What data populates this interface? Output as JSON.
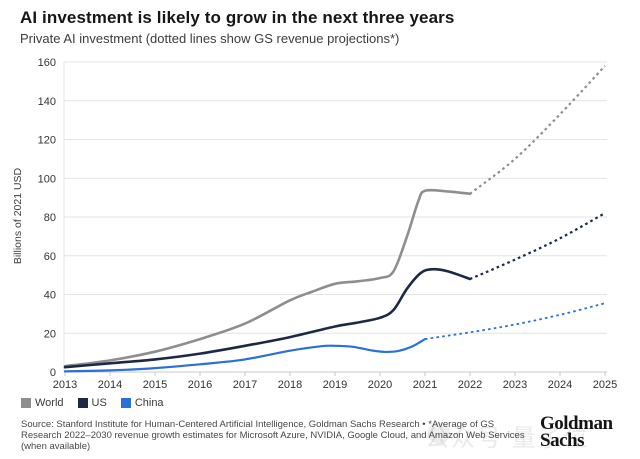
{
  "header": {
    "title": "AI investment is likely to grow in the next three years",
    "subtitle": "Private AI investment (dotted lines show GS revenue projections*)"
  },
  "chart_data": {
    "type": "line",
    "title": "AI investment is likely to grow in the next three years",
    "subtitle": "Private AI investment (dotted lines show GS revenue projections*)",
    "ylabel": "Billions of 2021 USD",
    "ylim": [
      0,
      160
    ],
    "ytick_step": 20,
    "yticks": [
      0,
      20,
      40,
      60,
      80,
      100,
      120,
      140,
      160
    ],
    "xticks": [
      2013,
      2014,
      2015,
      2016,
      2017,
      2018,
      2019,
      2020,
      2021,
      2022,
      2023,
      2024,
      2025
    ],
    "grid": "horizontal",
    "legend_position": "bottom-left",
    "note": "dotted segments are GS revenue projections",
    "series": [
      {
        "name": "World",
        "color": "#8e8e8e",
        "solid_width": 2.6,
        "solid": {
          "x": [
            2013,
            2014,
            2015,
            2016,
            2017,
            2018,
            2018.5,
            2019,
            2019.5,
            2020,
            2020.3,
            2020.6,
            2020.85,
            2021,
            2021.5,
            2022
          ],
          "y": [
            3,
            6,
            10.5,
            17,
            25,
            37,
            41.5,
            45.5,
            46.8,
            48.5,
            52,
            70,
            88,
            93.5,
            93.2,
            92
          ]
        },
        "dotted": {
          "x": [
            2022,
            2023,
            2024,
            2025
          ],
          "y": [
            92,
            110,
            133,
            158
          ]
        }
      },
      {
        "name": "US",
        "color": "#1b2946",
        "solid_width": 2.6,
        "solid": {
          "x": [
            2013,
            2014,
            2015,
            2016,
            2017,
            2018,
            2019,
            2019.5,
            2020,
            2020.3,
            2020.6,
            2020.9,
            2021.15,
            2021.5,
            2022
          ],
          "y": [
            2.5,
            4.5,
            6.5,
            9.5,
            13.5,
            18,
            23.5,
            25.5,
            28,
            32,
            43,
            51,
            53,
            52,
            48
          ]
        },
        "dotted": {
          "x": [
            2022,
            2023,
            2024,
            2025
          ],
          "y": [
            48,
            58,
            69,
            82
          ]
        }
      },
      {
        "name": "China",
        "color": "#2a6fdb",
        "solid_width": 2.2,
        "solid": {
          "x": [
            2013,
            2014,
            2015,
            2016,
            2017,
            2018,
            2018.7,
            2019,
            2019.4,
            2019.8,
            2020.1,
            2020.4,
            2020.7,
            2021
          ],
          "y": [
            0.3,
            0.8,
            2,
            4,
            6.5,
            11,
            13.3,
            13.5,
            13,
            11.2,
            10.4,
            10.8,
            13,
            17
          ]
        },
        "dotted": {
          "x": [
            2021,
            2022,
            2023,
            2024,
            2025
          ],
          "y": [
            17,
            20.5,
            24.5,
            29.5,
            35.5
          ]
        }
      }
    ]
  },
  "legend": {
    "items": [
      {
        "label": "World",
        "color": "#8e8e8e"
      },
      {
        "label": "US",
        "color": "#1b2946"
      },
      {
        "label": "China",
        "color": "#2a6fdb"
      }
    ]
  },
  "footer": {
    "source": "Source: Stanford Institute for Human-Centered Artificial Intelligence, Goldman Sachs Research • *Average of GS Research 2022–2030 revenue growth estimates for Microsoft Azure, NVIDIA, Google Cloud, and Amazon Web Services (when available)",
    "logo_line1": "Goldman",
    "logo_line2": "Sachs"
  },
  "watermark": {
    "text": "公众号 量子位"
  },
  "colors": {
    "grid": "#e4e4e4",
    "axis": "#c9c9c9",
    "tick_text": "#333333"
  }
}
